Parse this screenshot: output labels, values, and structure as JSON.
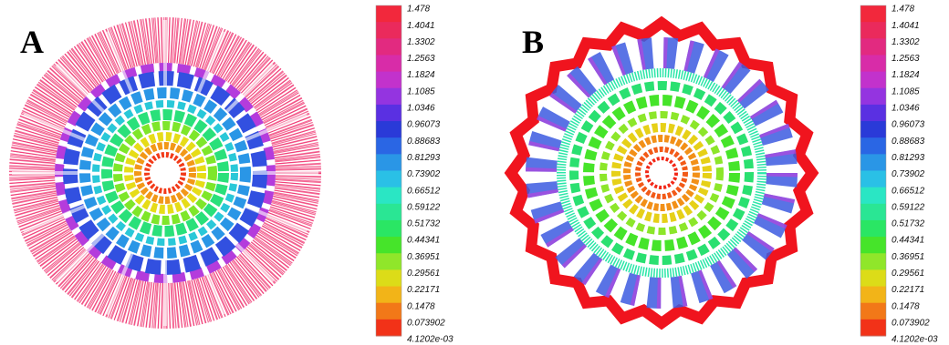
{
  "panels": [
    {
      "label": "A"
    },
    {
      "label": "B"
    }
  ],
  "colorbar": {
    "labels": [
      "1.478",
      "1.4041",
      "1.3302",
      "1.2563",
      "1.1824",
      "1.1085",
      "1.0346",
      "0.96073",
      "0.88683",
      "0.81293",
      "0.73902",
      "0.66512",
      "0.59122",
      "0.51732",
      "0.44341",
      "0.36951",
      "0.29561",
      "0.22171",
      "0.1478",
      "0.073902",
      "4.1202e-03"
    ],
    "colors": [
      "#f2283c",
      "#ea2a5c",
      "#e22a80",
      "#d82ca8",
      "#c232cc",
      "#9434e0",
      "#5a30e2",
      "#2a3ad8",
      "#2a66e4",
      "#2a96e6",
      "#2ac0e6",
      "#2ae6c4",
      "#2ae694",
      "#2ae664",
      "#46e42a",
      "#90e62a",
      "#dcdc18",
      "#f2b418",
      "#f27818",
      "#f23218"
    ]
  }
}
